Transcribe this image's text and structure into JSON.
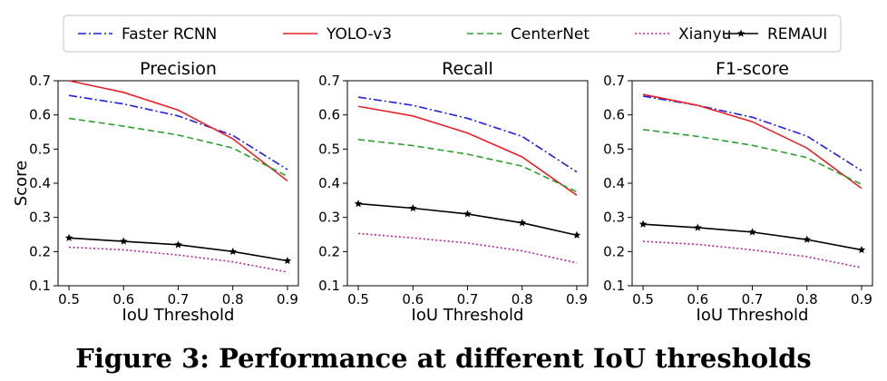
{
  "caption": "Figure 3: Performance at different IoU thresholds",
  "legend": [
    {
      "name": "Faster RCNN",
      "color": "#1f1fdc",
      "dash": "dashdot"
    },
    {
      "name": "YOLO-v3",
      "color": "#e8202a",
      "dash": "solid"
    },
    {
      "name": "CenterNet",
      "color": "#2ca02c",
      "dash": "dashed"
    },
    {
      "name": "Xianyu",
      "color": "#b5259e",
      "dash": "dotted"
    },
    {
      "name": "REMAUI",
      "color": "#000000",
      "dash": "solid-marker"
    }
  ],
  "chart_data": [
    {
      "type": "line",
      "title": "Precision",
      "xlabel": "IoU Threshold",
      "ylabel": "Score",
      "x": [
        0.5,
        0.6,
        0.7,
        0.8,
        0.9
      ],
      "xticks": [
        "0.5",
        "0.6",
        "0.7",
        "0.8",
        "0.9"
      ],
      "yticks": [
        "0.1",
        "0.2",
        "0.3",
        "0.4",
        "0.5",
        "0.6",
        "0.7"
      ],
      "xlim": [
        0.48,
        0.92
      ],
      "ylim": [
        0.1,
        0.7
      ],
      "series": [
        {
          "name": "Faster RCNN",
          "values": [
            0.657,
            0.632,
            0.597,
            0.54,
            0.44
          ]
        },
        {
          "name": "YOLO-v3",
          "values": [
            0.7,
            0.666,
            0.614,
            0.53,
            0.407
          ]
        },
        {
          "name": "CenterNet",
          "values": [
            0.59,
            0.567,
            0.541,
            0.503,
            0.42
          ]
        },
        {
          "name": "Xianyu",
          "values": [
            0.213,
            0.205,
            0.19,
            0.17,
            0.14
          ]
        },
        {
          "name": "REMAUI",
          "values": [
            0.24,
            0.23,
            0.22,
            0.2,
            0.173
          ]
        }
      ]
    },
    {
      "type": "line",
      "title": "Recall",
      "xlabel": "IoU Threshold",
      "ylabel": "",
      "x": [
        0.5,
        0.6,
        0.7,
        0.8,
        0.9
      ],
      "xticks": [
        "0.5",
        "0.6",
        "0.7",
        "0.8",
        "0.9"
      ],
      "yticks": [
        "0.1",
        "0.2",
        "0.3",
        "0.4",
        "0.5",
        "0.6",
        "0.7"
      ],
      "xlim": [
        0.48,
        0.92
      ],
      "ylim": [
        0.1,
        0.7
      ],
      "series": [
        {
          "name": "Faster RCNN",
          "values": [
            0.652,
            0.628,
            0.59,
            0.537,
            0.433
          ]
        },
        {
          "name": "YOLO-v3",
          "values": [
            0.625,
            0.597,
            0.547,
            0.477,
            0.365
          ]
        },
        {
          "name": "CenterNet",
          "values": [
            0.528,
            0.51,
            0.485,
            0.45,
            0.375
          ]
        },
        {
          "name": "Xianyu",
          "values": [
            0.253,
            0.24,
            0.225,
            0.202,
            0.167
          ]
        },
        {
          "name": "REMAUI",
          "values": [
            0.34,
            0.327,
            0.31,
            0.284,
            0.248
          ]
        }
      ]
    },
    {
      "type": "line",
      "title": "F1-score",
      "xlabel": "IoU Threshold",
      "ylabel": "",
      "x": [
        0.5,
        0.6,
        0.7,
        0.8,
        0.9
      ],
      "xticks": [
        "0.5",
        "0.6",
        "0.7",
        "0.8",
        "0.9"
      ],
      "yticks": [
        "0.1",
        "0.2",
        "0.3",
        "0.4",
        "0.5",
        "0.6",
        "0.7"
      ],
      "xlim": [
        0.48,
        0.92
      ],
      "ylim": [
        0.1,
        0.7
      ],
      "series": [
        {
          "name": "Faster RCNN",
          "values": [
            0.655,
            0.628,
            0.593,
            0.538,
            0.437
          ]
        },
        {
          "name": "YOLO-v3",
          "values": [
            0.66,
            0.628,
            0.58,
            0.503,
            0.385
          ]
        },
        {
          "name": "CenterNet",
          "values": [
            0.557,
            0.537,
            0.511,
            0.475,
            0.397
          ]
        },
        {
          "name": "Xianyu",
          "values": [
            0.23,
            0.221,
            0.205,
            0.185,
            0.153
          ]
        },
        {
          "name": "REMAUI",
          "values": [
            0.28,
            0.27,
            0.257,
            0.235,
            0.205
          ]
        }
      ]
    }
  ]
}
